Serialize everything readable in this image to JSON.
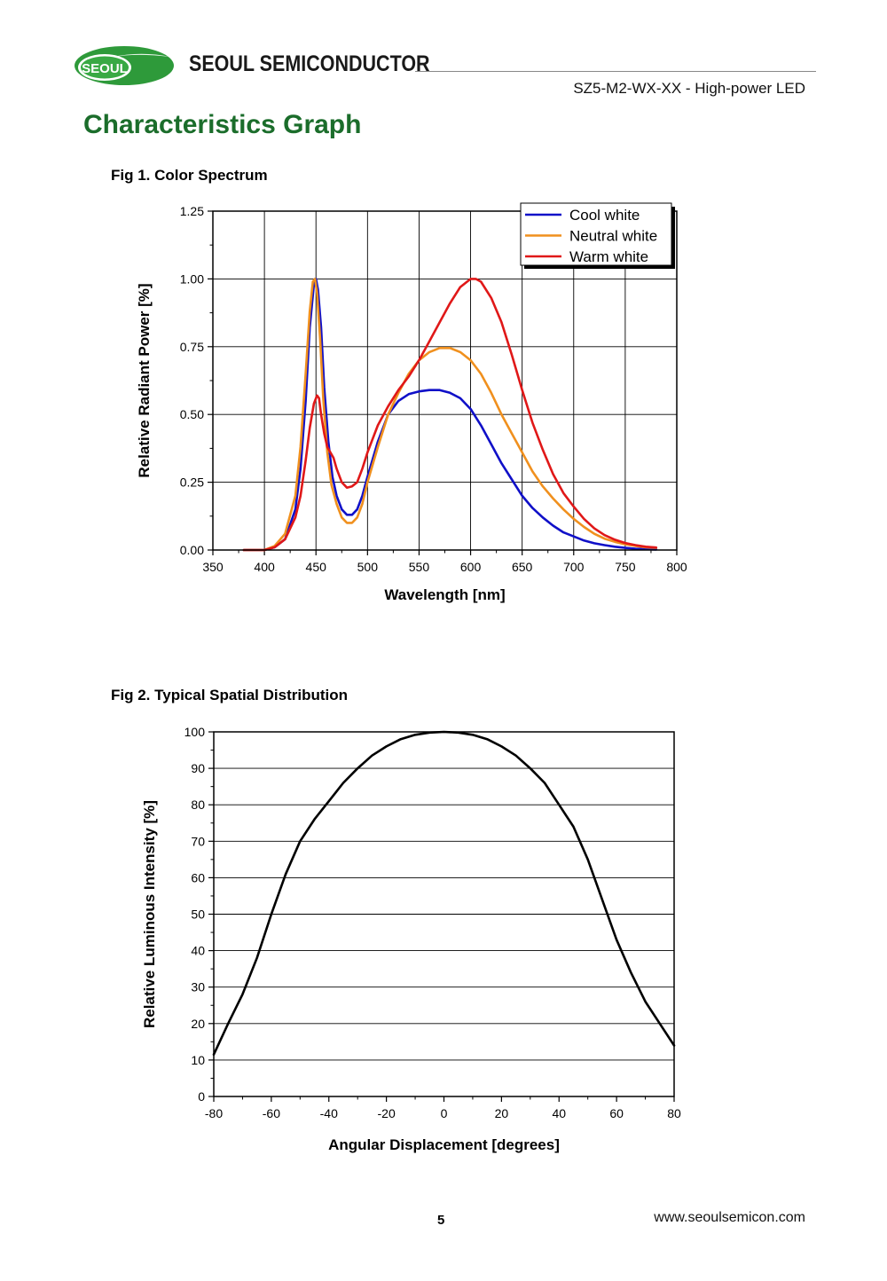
{
  "header": {
    "logo_text": "SEOUL",
    "brand": "SEOUL SEMICONDUCTOR",
    "doc_subtitle": "SZ5-M2-WX-XX - High-power LED"
  },
  "page_title": "Characteristics Graph",
  "figures": {
    "fig1_title": "Fig 1. Color Spectrum",
    "fig2_title": "Fig 2. Typical Spatial Distribution"
  },
  "footer": {
    "page_number": "5",
    "website": "www.seoulsemicon.com"
  },
  "colors": {
    "title_green": "#1b6d2b",
    "logo_green": "#2e9a3a",
    "cool_white": "#1010c8",
    "neutral_white": "#f0901e",
    "warm_white": "#e01818"
  },
  "chart_data": [
    {
      "type": "line",
      "title": "Fig 1. Color Spectrum",
      "xlabel": "Wavelength [nm]",
      "ylabel": "Relative Radiant Power [%]",
      "xlim": [
        350,
        800
      ],
      "ylim": [
        0,
        1.25
      ],
      "xticks": [
        350,
        400,
        450,
        500,
        550,
        600,
        650,
        700,
        750,
        800
      ],
      "yticks": [
        0.0,
        0.25,
        0.5,
        0.75,
        1.0,
        1.25
      ],
      "xtick_labels": [
        "350",
        "400",
        "450",
        "500",
        "550",
        "600",
        "650",
        "700",
        "750",
        "800"
      ],
      "ytick_labels": [
        "0.00",
        "0.25",
        "0.50",
        "0.75",
        "1.00",
        "1.25"
      ],
      "grid": true,
      "legend_position": "top-right",
      "series": [
        {
          "name": "Cool white",
          "color": "#1010c8",
          "x": [
            380,
            400,
            410,
            420,
            430,
            435,
            440,
            444,
            448,
            450,
            452,
            455,
            458,
            462,
            466,
            470,
            475,
            480,
            485,
            490,
            495,
            500,
            510,
            520,
            530,
            540,
            550,
            560,
            570,
            580,
            590,
            600,
            610,
            620,
            630,
            640,
            650,
            660,
            670,
            680,
            690,
            700,
            710,
            720,
            730,
            740,
            750,
            760,
            770,
            780
          ],
          "y": [
            0.0,
            0.0,
            0.01,
            0.04,
            0.15,
            0.3,
            0.55,
            0.82,
            0.98,
            1.0,
            0.96,
            0.82,
            0.6,
            0.4,
            0.27,
            0.2,
            0.15,
            0.13,
            0.13,
            0.15,
            0.2,
            0.27,
            0.4,
            0.5,
            0.55,
            0.575,
            0.585,
            0.59,
            0.59,
            0.58,
            0.56,
            0.52,
            0.46,
            0.39,
            0.32,
            0.26,
            0.2,
            0.155,
            0.12,
            0.09,
            0.065,
            0.05,
            0.035,
            0.025,
            0.018,
            0.012,
            0.008,
            0.005,
            0.003,
            0.002
          ]
        },
        {
          "name": "Neutral white",
          "color": "#f0901e",
          "x": [
            380,
            400,
            410,
            420,
            430,
            435,
            440,
            444,
            447,
            449,
            451,
            454,
            457,
            461,
            465,
            470,
            475,
            480,
            485,
            490,
            495,
            500,
            510,
            520,
            530,
            540,
            550,
            560,
            570,
            580,
            590,
            600,
            610,
            620,
            630,
            640,
            650,
            660,
            670,
            680,
            690,
            700,
            710,
            720,
            730,
            740,
            750,
            760,
            770,
            780
          ],
          "y": [
            0.0,
            0.0,
            0.015,
            0.06,
            0.2,
            0.38,
            0.65,
            0.88,
            0.99,
            1.0,
            0.95,
            0.78,
            0.56,
            0.36,
            0.24,
            0.17,
            0.12,
            0.1,
            0.1,
            0.12,
            0.17,
            0.25,
            0.38,
            0.5,
            0.58,
            0.65,
            0.7,
            0.73,
            0.745,
            0.745,
            0.73,
            0.7,
            0.65,
            0.58,
            0.5,
            0.43,
            0.36,
            0.29,
            0.235,
            0.19,
            0.15,
            0.115,
            0.085,
            0.06,
            0.042,
            0.03,
            0.021,
            0.015,
            0.01,
            0.008
          ]
        },
        {
          "name": "Warm white",
          "color": "#e01818",
          "x": [
            380,
            400,
            410,
            420,
            430,
            435,
            440,
            444,
            448,
            451,
            453,
            455,
            458,
            461,
            464,
            467,
            470,
            475,
            480,
            485,
            490,
            495,
            500,
            510,
            520,
            530,
            540,
            550,
            560,
            570,
            580,
            590,
            600,
            605,
            610,
            620,
            630,
            640,
            650,
            660,
            670,
            680,
            690,
            700,
            710,
            720,
            730,
            740,
            750,
            760,
            770,
            780
          ],
          "y": [
            0.0,
            0.0,
            0.01,
            0.04,
            0.12,
            0.2,
            0.33,
            0.45,
            0.54,
            0.57,
            0.56,
            0.5,
            0.43,
            0.38,
            0.36,
            0.34,
            0.3,
            0.25,
            0.23,
            0.235,
            0.25,
            0.3,
            0.36,
            0.46,
            0.53,
            0.59,
            0.64,
            0.7,
            0.77,
            0.84,
            0.91,
            0.97,
            1.0,
            1.0,
            0.99,
            0.93,
            0.84,
            0.72,
            0.59,
            0.47,
            0.37,
            0.28,
            0.21,
            0.16,
            0.115,
            0.08,
            0.055,
            0.038,
            0.026,
            0.018,
            0.012,
            0.009
          ]
        }
      ]
    },
    {
      "type": "line",
      "title": "Fig 2. Typical Spatial Distribution",
      "xlabel": "Angular Displacement [degrees]",
      "ylabel": "Relative Luminous Intensity [%]",
      "xlim": [
        -80,
        80
      ],
      "ylim": [
        0,
        100
      ],
      "xticks": [
        -80,
        -60,
        -40,
        -20,
        0,
        20,
        40,
        60,
        80
      ],
      "yticks": [
        0,
        10,
        20,
        30,
        40,
        50,
        60,
        70,
        80,
        90,
        100
      ],
      "xtick_labels": [
        "-80",
        "-60",
        "-40",
        "-20",
        "0",
        "20",
        "40",
        "60",
        "80"
      ],
      "ytick_labels": [
        "0",
        "10",
        "20",
        "30",
        "40",
        "50",
        "60",
        "70",
        "80",
        "90",
        "100"
      ],
      "grid": true,
      "legend_position": "none",
      "series": [
        {
          "name": "Spatial distribution",
          "color": "#000000",
          "x": [
            -80,
            -75,
            -70,
            -65,
            -60,
            -55,
            -50,
            -45,
            -40,
            -35,
            -30,
            -25,
            -20,
            -15,
            -10,
            -5,
            0,
            5,
            10,
            15,
            20,
            25,
            30,
            35,
            40,
            45,
            50,
            55,
            60,
            65,
            70,
            75,
            80
          ],
          "y": [
            11.5,
            20,
            28,
            38,
            50,
            61,
            70,
            76,
            81,
            86,
            90,
            93.5,
            96,
            98,
            99.2,
            99.8,
            100,
            99.8,
            99.2,
            98,
            96,
            93.5,
            90,
            86,
            80,
            74,
            65,
            54,
            43,
            34,
            26,
            20,
            14
          ]
        }
      ]
    }
  ]
}
